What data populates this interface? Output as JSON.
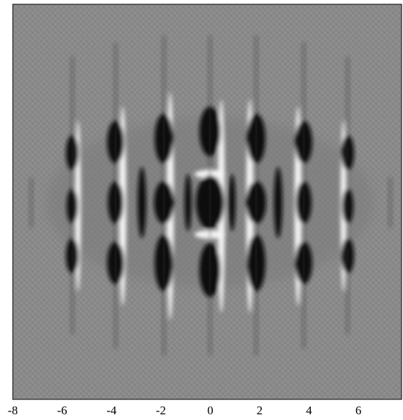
{
  "chart_data": {
    "type": "image",
    "xlim": [
      -8,
      7.75
    ],
    "xticks": [
      -8,
      -6,
      -4,
      -2,
      0,
      2,
      4,
      6
    ]
  }
}
